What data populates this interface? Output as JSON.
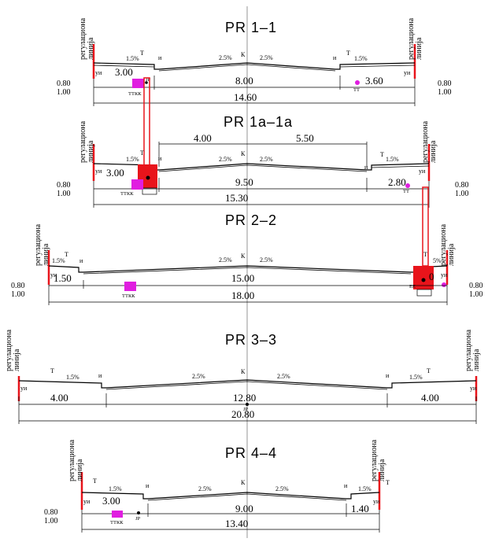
{
  "labels": {
    "reg_line_1": "регулациона",
    "reg_line_2": "линија",
    "curb": "уи",
    "pavement": "Т",
    "edge": "и",
    "axis": "К",
    "ttkk": "ТТКК",
    "tt": "ТТ",
    "jp": "JP",
    "ee": "ЕЕ"
  },
  "sections": [
    {
      "title": "PR 1–1",
      "dims": [
        "3.00",
        "8.00",
        "3.60",
        "14.60"
      ],
      "slopes": [
        "1.5%",
        "2.5%",
        "2.5%",
        "1.5%"
      ],
      "levels": [
        "0.80",
        "1.00",
        "0.80",
        "1.00"
      ]
    },
    {
      "title": "PR 1a–1a",
      "dims": [
        "4.00",
        "5.50",
        "3.00",
        "9.50",
        "2.80",
        "15.30"
      ],
      "slopes": [
        "1.5%",
        "2.5%",
        "2.5%",
        "1.5%"
      ],
      "levels": [
        "0.80",
        "1.00",
        "0.80",
        "1.00"
      ]
    },
    {
      "title": "PR 2–2",
      "dims": [
        "1.50",
        "15.00",
        "18.00",
        "0"
      ],
      "slopes": [
        "1.5%",
        "2.5%",
        "2.5%",
        "5%"
      ],
      "levels": [
        "0.80",
        "1.00",
        "0.80",
        "1.00"
      ]
    },
    {
      "title": "PR 3–3",
      "dims": [
        "4.00",
        "12.80",
        "4.00",
        "20.80"
      ],
      "slopes": [
        "1.5%",
        "2.5%",
        "2.5%",
        "1.5%"
      ],
      "levels": []
    },
    {
      "title": "PR 4–4",
      "dims": [
        "3.00",
        "9.00",
        "1.40",
        "13.40"
      ],
      "slopes": [
        "1.5%",
        "2.5%",
        "2.5%",
        "1.5%"
      ],
      "levels": [
        "0.80",
        "1.00"
      ]
    }
  ],
  "colors": {
    "regulation": "#e8141b",
    "utility": "#e01ee0",
    "axis": "#b9b9b9"
  }
}
